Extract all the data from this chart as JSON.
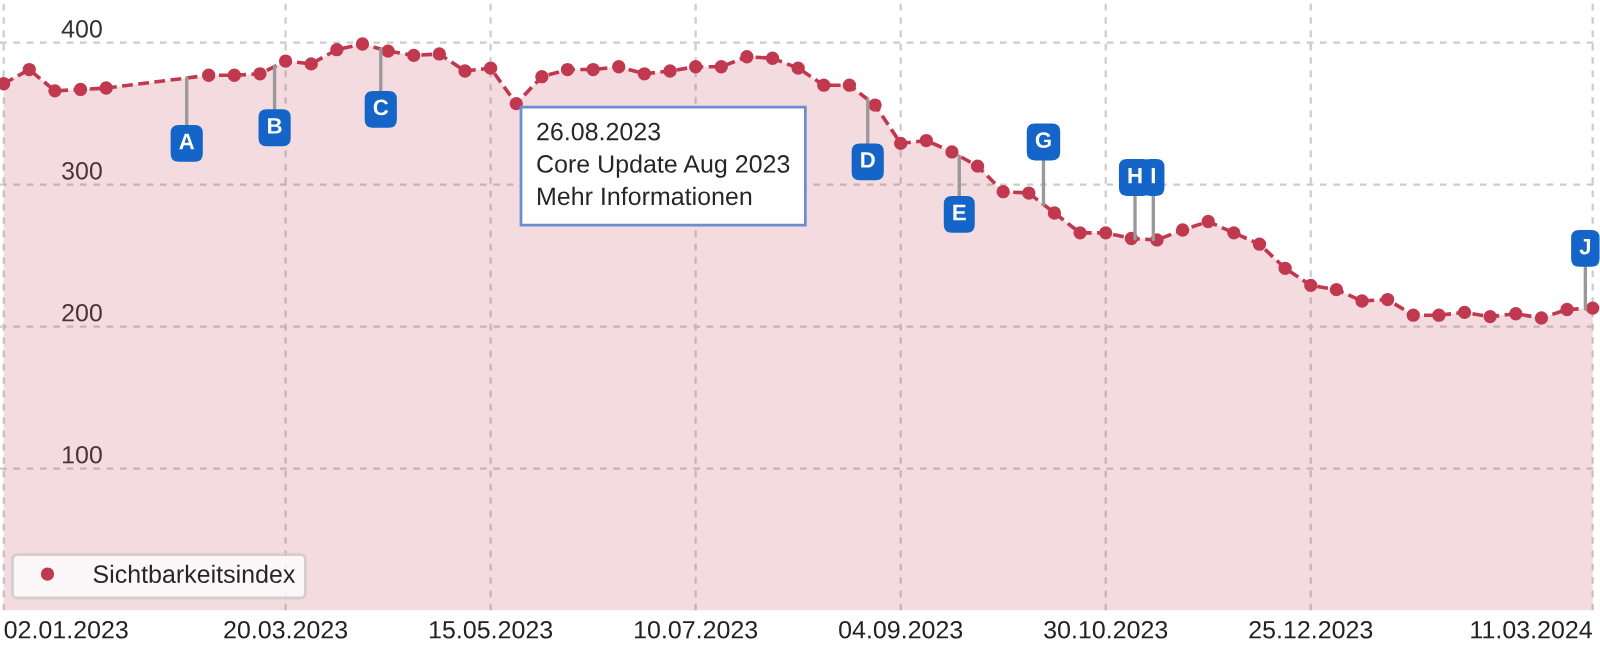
{
  "chart_data": {
    "type": "area",
    "x": [
      "2023-01-02",
      "2023-01-09",
      "2023-01-16",
      "2023-01-23",
      "2023-01-30",
      "2023-02-06",
      "2023-02-13",
      "2023-02-20",
      "2023-02-27",
      "2023-03-06",
      "2023-03-13",
      "2023-03-20",
      "2023-03-27",
      "2023-04-03",
      "2023-04-10",
      "2023-04-17",
      "2023-04-24",
      "2023-05-01",
      "2023-05-08",
      "2023-05-15",
      "2023-05-22",
      "2023-05-29",
      "2023-06-05",
      "2023-06-12",
      "2023-06-19",
      "2023-06-26",
      "2023-07-03",
      "2023-07-10",
      "2023-07-17",
      "2023-07-24",
      "2023-07-31",
      "2023-08-07",
      "2023-08-14",
      "2023-08-21",
      "2023-08-28",
      "2023-09-04",
      "2023-09-11",
      "2023-09-18",
      "2023-09-25",
      "2023-10-02",
      "2023-10-09",
      "2023-10-16",
      "2023-10-23",
      "2023-10-30",
      "2023-11-06",
      "2023-11-13",
      "2023-11-20",
      "2023-11-27",
      "2023-12-04",
      "2023-12-11",
      "2023-12-18",
      "2023-12-25",
      "2024-01-01",
      "2024-01-08",
      "2024-01-15",
      "2024-01-22",
      "2024-01-29",
      "2024-02-05",
      "2024-02-12",
      "2024-02-19",
      "2024-02-26",
      "2024-03-04",
      "2024-03-11"
    ],
    "series": [
      {
        "name": "Sichtbarkeitsindex",
        "color": "#c0394f",
        "values": [
          371,
          381,
          366,
          367,
          368,
          null,
          null,
          null,
          377,
          377,
          378,
          387,
          385,
          395,
          399,
          394,
          391,
          392,
          380,
          382,
          357,
          376,
          381,
          381,
          383,
          378,
          380,
          383,
          383,
          390,
          389,
          382,
          370,
          370,
          356,
          329,
          331,
          323,
          313,
          295,
          294,
          280,
          266,
          266,
          262,
          261,
          268,
          274,
          266,
          258,
          241,
          229,
          226,
          218,
          219,
          208,
          208,
          210,
          207,
          209,
          206,
          212,
          213
        ]
      }
    ],
    "ylim": [
      0,
      430
    ],
    "yticks": [
      100,
      200,
      300,
      400
    ],
    "xlim": [
      "2023-01-01",
      "2024-03-13"
    ],
    "xticks": [
      {
        "value": "2023-01-02",
        "label": "02.01.2023"
      },
      {
        "value": "2023-03-20",
        "label": "20.03.2023"
      },
      {
        "value": "2023-05-15",
        "label": "15.05.2023"
      },
      {
        "value": "2023-07-10",
        "label": "10.07.2023"
      },
      {
        "value": "2023-09-04",
        "label": "04.09.2023"
      },
      {
        "value": "2023-10-30",
        "label": "30.10.2023"
      },
      {
        "value": "2023-12-25",
        "label": "25.12.2023"
      },
      {
        "value": "2024-03-11",
        "label": "11.03.2024"
      }
    ],
    "grid": true,
    "marker": "circle",
    "legend": "bottom left",
    "annotations": [
      {
        "text": "A",
        "x": "2023-02-21",
        "y": 329
      },
      {
        "text": "B",
        "x": "2023-03-17",
        "y": 340
      },
      {
        "text": "C",
        "x": "2023-04-15",
        "y": 353
      },
      {
        "text": "D",
        "x": "2023-08-26",
        "y": 316
      },
      {
        "text": "E",
        "x": "2023-09-20",
        "y": 279
      },
      {
        "text": "G",
        "x": "2023-10-13",
        "y": 330
      },
      {
        "text": "H",
        "x": "2023-11-07",
        "y": 305
      },
      {
        "text": "I",
        "x": "2023-11-12",
        "y": 305
      },
      {
        "text": "J",
        "x": "2024-03-09",
        "y": 255
      },
      "26.08.2023\nCore Update Aug 2023\nMehr Informationen"
    ]
  }
}
